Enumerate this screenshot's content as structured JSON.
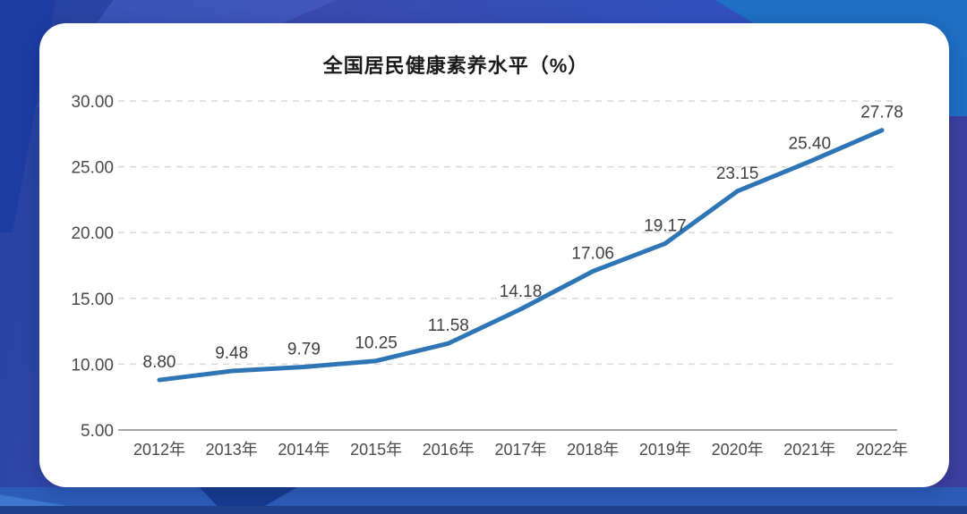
{
  "card": {
    "title": "全国居民健康素养水平（%）"
  },
  "chart_data": {
    "type": "line",
    "title": "全国居民健康素养水平（%）",
    "categories": [
      "2012年",
      "2013年",
      "2014年",
      "2015年",
      "2016年",
      "2017年",
      "2018年",
      "2019年",
      "2020年",
      "2021年",
      "2022年"
    ],
    "values": [
      8.8,
      9.48,
      9.79,
      10.25,
      11.58,
      14.18,
      17.06,
      19.17,
      23.15,
      25.4,
      27.78
    ],
    "value_labels": [
      "8.80",
      "9.48",
      "9.79",
      "10.25",
      "11.58",
      "14.18",
      "17.06",
      "19.17",
      "23.15",
      "25.40",
      "27.78"
    ],
    "y_ticks": [
      {
        "value": 30,
        "label": "30.00"
      },
      {
        "value": 25,
        "label": "25.00"
      },
      {
        "value": 20,
        "label": "20.00"
      },
      {
        "value": 15,
        "label": "15.00"
      },
      {
        "value": 10,
        "label": "10.00"
      },
      {
        "value": 5,
        "label": "5.00"
      }
    ],
    "ylim": [
      5,
      30
    ],
    "xlabel": "",
    "ylabel": "",
    "grid": "horizontal dashed",
    "legend": "none",
    "colors": {
      "line": "#2E75B6",
      "grid": "#D9D9D9",
      "axis": "#A6A6A6",
      "tick_text": "#4A4A4A",
      "point_label_text": "#3F3F3F",
      "title_text": "#1A1A1A"
    }
  },
  "background": {
    "base_blue": "#3150BD",
    "top_left_dark": "#1D3DA4",
    "top_right_bright": "#1F6FC4",
    "right_indigo": "#3C3F9E",
    "bottom_band": "#2C5CB7",
    "bottom_dark_strip": "#20418C",
    "card_white": "#FFFFFF"
  }
}
